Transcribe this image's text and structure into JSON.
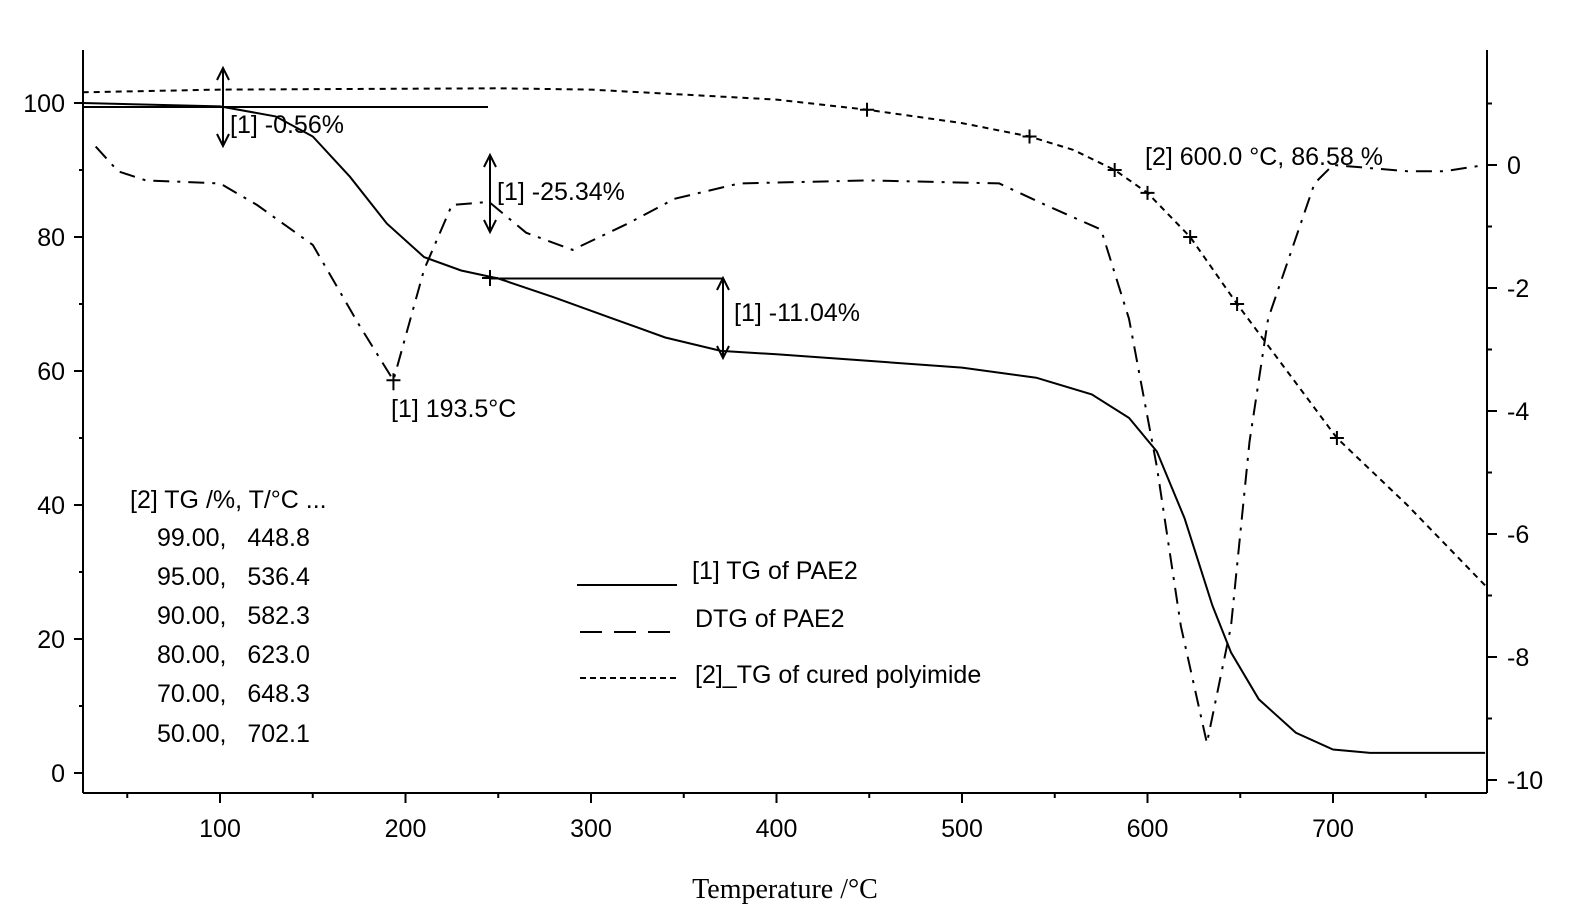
{
  "chart_data": {
    "type": "line",
    "xlabel": "Temperature /°C",
    "xlim": [
      26,
      782
    ],
    "ylim_left": [
      -3,
      108
    ],
    "ylim_right": [
      -10.25,
      1.9
    ],
    "x_ticks": [
      100,
      200,
      300,
      400,
      500,
      600,
      700
    ],
    "y_left_ticks": [
      0,
      20,
      40,
      60,
      80,
      100
    ],
    "y_right_ticks": [
      0,
      -2,
      -4,
      -6,
      -8,
      -10
    ],
    "series": [
      {
        "name": "[1] TG of PAE2",
        "axis": "left",
        "style": "solid",
        "x": [
          26,
          100,
          130,
          150,
          170,
          190,
          210,
          230,
          250,
          280,
          310,
          340,
          370,
          400,
          450,
          500,
          540,
          570,
          590,
          605,
          620,
          635,
          645,
          660,
          680,
          700,
          720,
          782
        ],
        "y": [
          100,
          99.5,
          98,
          95,
          89,
          82,
          77,
          75,
          73.8,
          71,
          68,
          65,
          63,
          62.5,
          61.5,
          60.5,
          59,
          56.5,
          53,
          48,
          38,
          25,
          18,
          11,
          6,
          3.5,
          3,
          3
        ]
      },
      {
        "name": "DTG of PAE2",
        "axis": "right",
        "style": "dashdot",
        "x": [
          33,
          45,
          60,
          100,
          120,
          150,
          175,
          193.5,
          210,
          225,
          245,
          265,
          290,
          320,
          345,
          380,
          450,
          520,
          545,
          575,
          590,
          605,
          618,
          632,
          645,
          655,
          665,
          690,
          700,
          740,
          760,
          782
        ],
        "y": [
          0.3,
          -0.1,
          -0.25,
          -0.3,
          -0.65,
          -1.3,
          -2.6,
          -3.5,
          -1.7,
          -0.65,
          -0.6,
          -1.1,
          -1.38,
          -0.95,
          -0.55,
          -0.3,
          -0.25,
          -0.3,
          -0.65,
          -1.05,
          -2.5,
          -4.9,
          -7.5,
          -9.4,
          -7.5,
          -4.5,
          -2.5,
          -0.3,
          0,
          -0.1,
          -0.1,
          0
        ]
      },
      {
        "name": "[2]_TG of cured polyimide",
        "axis": "left",
        "style": "dashed",
        "x": [
          26,
          100,
          250,
          300,
          400,
          448.8,
          500,
          536.4,
          560,
          582.3,
          600,
          623,
          648.3,
          702.1,
          740,
          782
        ],
        "y": [
          101.6,
          102,
          102.2,
          102,
          100.5,
          99,
          97,
          95,
          93,
          90,
          86.58,
          80,
          70,
          50,
          40,
          28
        ]
      }
    ],
    "markers": [
      [
        448.8,
        99
      ],
      [
        536.4,
        95
      ],
      [
        582.3,
        90
      ],
      [
        600,
        86.58
      ],
      [
        623,
        80
      ],
      [
        648.3,
        70
      ],
      [
        702.1,
        50
      ]
    ],
    "annotations": {
      "step1": "[1] -0.56%",
      "step2": "[1] -25.34%",
      "step3": "[1] -11.04%",
      "peak": "[1] 193.5°C",
      "point": "[2] 600.0 °C, 86.58 %"
    },
    "legend": [
      "[1] TG of PAE2",
      "DTG of PAE2",
      "[2]_TG of cured polyimide"
    ],
    "table": {
      "header": "[2] TG /%, T/°C ...",
      "rows": [
        "99.00,   448.8",
        "95.00,   536.4",
        "90.00,   582.3",
        "80.00,   623.0",
        "70.00,   648.3",
        "50.00,   702.1"
      ]
    }
  }
}
